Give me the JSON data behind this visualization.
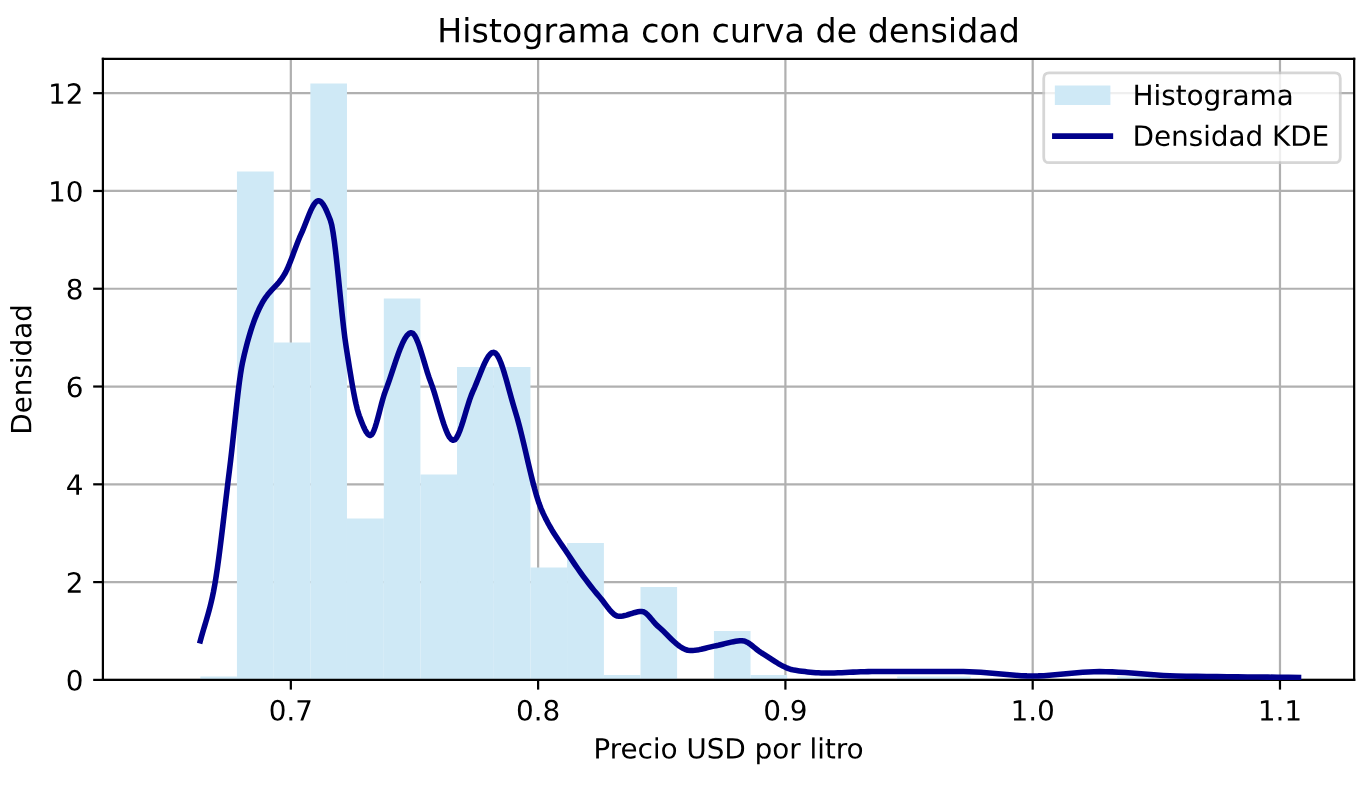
{
  "chart_data": {
    "type": "histogram",
    "title": "Histograma con curva de densidad",
    "xlabel": "Precio USD por litro",
    "ylabel": "Densidad",
    "series": [
      {
        "name": "Histograma",
        "color": "#cfe9f6",
        "bins": [
          0.6634,
          0.6782,
          0.6931,
          0.7079,
          0.7227,
          0.7376,
          0.7524,
          0.7672,
          0.7821,
          0.7969,
          0.8117,
          0.8266,
          0.8414,
          0.8562,
          0.8711,
          0.8859,
          0.9007,
          0.9156,
          0.9304,
          0.9452,
          0.9601,
          0.9749,
          0.9897,
          1.0046,
          1.0194,
          1.0342,
          1.049,
          1.0639,
          1.0787,
          1.0935,
          1.1083
        ],
        "values": [
          0.07,
          10.4,
          6.9,
          12.2,
          3.3,
          7.8,
          4.2,
          6.4,
          6.4,
          2.3,
          2.8,
          0.1,
          1.9,
          0,
          1.0,
          0.1,
          0,
          0,
          0,
          0.07,
          0.07,
          0,
          null,
          0,
          0,
          0.07,
          null,
          0,
          0,
          null
        ]
      },
      {
        "name": "Densidad KDE",
        "type": "line",
        "color": "#00008b",
        "x": [
          0.6634,
          0.6687,
          0.6752,
          0.6805,
          0.6883,
          0.6975,
          0.704,
          0.7112,
          0.716,
          0.7224,
          0.7277,
          0.7321,
          0.7382,
          0.7487,
          0.7565,
          0.7657,
          0.7736,
          0.782,
          0.7907,
          0.8012,
          0.8117,
          0.8248,
          0.8327,
          0.8419,
          0.8484,
          0.8616,
          0.872,
          0.8825,
          0.8904,
          0.9035,
          0.9167,
          0.935,
          0.972,
          1.0,
          1.027,
          1.058,
          1.1075
        ],
        "values": [
          0.8,
          1.8,
          4.3,
          6.5,
          7.7,
          8.3,
          9.1,
          9.8,
          9.4,
          6.8,
          5.4,
          5.0,
          5.9,
          7.1,
          6.1,
          4.9,
          5.9,
          6.7,
          5.5,
          3.5,
          2.6,
          1.7,
          1.3,
          1.4,
          1.1,
          0.6,
          0.7,
          0.8,
          0.55,
          0.2,
          0.14,
          0.17,
          0.17,
          0.08,
          0.17,
          0.08,
          0.05
        ]
      }
    ],
    "xlim": [
      0.624,
      1.13
    ],
    "xticks": [
      0.7,
      0.8,
      0.9,
      {
        "value": 1.0,
        "label": "1.0"
      },
      1.1
    ],
    "ylim": [
      0,
      12.7
    ],
    "yticks": [
      0,
      2,
      4,
      6,
      8,
      10,
      12
    ],
    "grid": true,
    "legend": "top right",
    "line_style": "solid",
    "marker": "none"
  }
}
